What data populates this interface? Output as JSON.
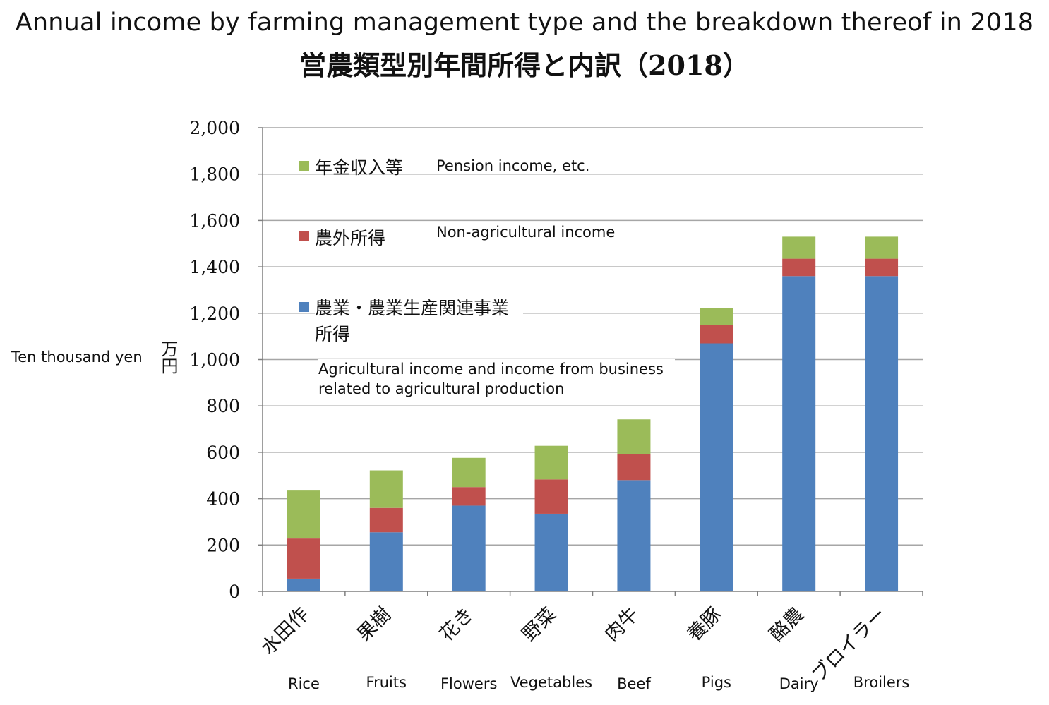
{
  "chart_data": {
    "type": "bar",
    "stacked": true,
    "title": "Annual income by farming management type and the breakdown thereof in 2018",
    "subtitle": "営農類型別年間所得と内訳（2018）",
    "ylabel": "万円",
    "ylabel_en": "Ten thousand yen",
    "ylim": [
      0,
      2000
    ],
    "yticks": [
      0,
      200,
      400,
      600,
      800,
      1000,
      1200,
      1400,
      1600,
      1800,
      2000
    ],
    "ytick_labels": [
      "0",
      "200",
      "400",
      "600",
      "800",
      "1,000",
      "1,200",
      "1,400",
      "1,600",
      "1,800",
      "2,000"
    ],
    "grid": true,
    "legend_position": "top-left",
    "categories": [
      "水田作",
      "果樹",
      "花き",
      "野菜",
      "肉牛",
      "養豚",
      "酪農",
      "ブロイラー"
    ],
    "categories_en": [
      "Rice",
      "Fruits",
      "Flowers",
      "Vegetables",
      "Beef",
      "Pigs",
      "Dairy",
      "Broilers"
    ],
    "series": [
      {
        "name": "農業・農業生産関連事業所得",
        "name_en": "Agricultural income and income from business related to agricultural production",
        "color": "#4f81bd",
        "values": [
          55,
          255,
          370,
          335,
          480,
          1070,
          1360,
          1360
        ]
      },
      {
        "name": "農外所得",
        "name_en": "Non-agricultural income",
        "color": "#c0504d",
        "values": [
          173,
          105,
          80,
          148,
          112,
          80,
          75,
          75
        ]
      },
      {
        "name": "年金収入等",
        "name_en": "Pension income, etc.",
        "color": "#9bbb59",
        "values": [
          207,
          162,
          126,
          145,
          150,
          72,
          95,
          95
        ]
      }
    ]
  }
}
